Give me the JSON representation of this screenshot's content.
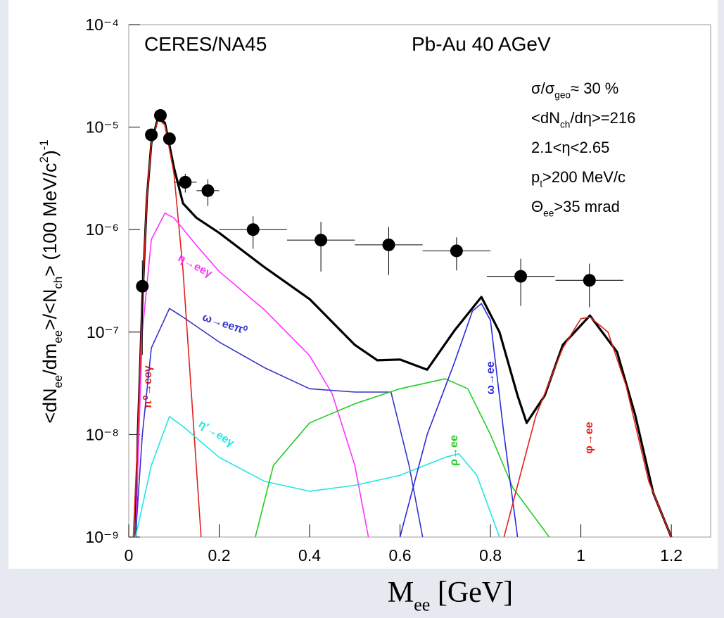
{
  "chart_data": {
    "type": "line",
    "title": "CERES/NA45",
    "subtitle": "Pb-Au 40 AGeV",
    "annotations": [
      [
        {
          "text": "σ/σ"
        },
        {
          "text": "geo",
          "sub": true
        },
        {
          "text": "≈ 30 %"
        }
      ],
      [
        {
          "text": "<dN"
        },
        {
          "text": "ch",
          "sub": true
        },
        {
          "text": "/dη>=216"
        }
      ],
      [
        {
          "text": "2.1<η<2.65"
        }
      ],
      [
        {
          "text": "p"
        },
        {
          "text": "t",
          "sub": true
        },
        {
          "text": ">200 MeV/c"
        }
      ],
      [
        {
          "text": "Θ"
        },
        {
          "text": "ee",
          "sub": true
        },
        {
          "text": ">35 mrad"
        }
      ]
    ],
    "ylabel": [
      {
        "text": "<dN"
      },
      {
        "text": "ee",
        "sub": true
      },
      {
        "text": "/dm"
      },
      {
        "text": "ee",
        "sub": true
      },
      {
        "text": ">/<N"
      },
      {
        "text": "ch",
        "sub": true
      },
      {
        "text": "> (100 MeV/c"
      },
      {
        "text": "2",
        "sup": true
      },
      {
        "text": ")"
      },
      {
        "text": "-1",
        "sup": true
      }
    ],
    "xlabel": [
      {
        "text": "M"
      },
      {
        "text": "ee",
        "sub": true
      },
      {
        "text": " [GeV]"
      }
    ],
    "xlim": [
      0,
      1.287
    ],
    "ylim": [
      1e-09,
      0.0001
    ],
    "log_y": true,
    "xticks": [
      0,
      0.2,
      0.4,
      0.6,
      0.8,
      1,
      1.2
    ],
    "yticks": [
      {
        "value": 1e-09,
        "label": "10⁻⁹"
      },
      {
        "value": 1e-08,
        "label": "10⁻⁸"
      },
      {
        "value": 1e-07,
        "label": "10⁻⁷"
      },
      {
        "value": 1e-06,
        "label": "10⁻⁶"
      },
      {
        "value": 1e-05,
        "label": "10⁻⁵"
      },
      {
        "value": 0.0001,
        "label": "10⁻⁴"
      }
    ],
    "series": [
      {
        "type": "errorbar",
        "color": "#000000",
        "x": [
          0.03,
          0.05,
          0.07,
          0.09,
          0.125,
          0.175,
          0.275,
          0.425,
          0.575,
          0.725,
          0.867,
          1.019
        ],
        "values": [
          2.8e-07,
          8.4e-06,
          1.3e-05,
          7.7e-06,
          2.9e-06,
          2.4e-06,
          1e-06,
          7.9e-07,
          7.1e-07,
          6.2e-07,
          3.5e-07,
          3.2e-07
        ],
        "errors": [
          2.2e-07,
          1e-06,
          1.3e-06,
          9e-07,
          6e-07,
          7e-07,
          3.5e-07,
          4e-07,
          3.5e-07,
          2.2e-07,
          1.7e-07,
          1.45e-07
        ],
        "xerr": [
          0.01,
          0.01,
          0.01,
          0.01,
          0.025,
          0.025,
          0.075,
          0.075,
          0.075,
          0.075,
          0.075,
          0.075
        ]
      },
      {
        "type": "line",
        "color": "#000000",
        "x": [
          0.015,
          0.02,
          0.03,
          0.04,
          0.05,
          0.065,
          0.08,
          0.1,
          0.12,
          0.15,
          0.2,
          0.3,
          0.4,
          0.5,
          0.55,
          0.6,
          0.66,
          0.72,
          0.78,
          0.82,
          0.86,
          0.88,
          0.92,
          0.96,
          1.02,
          1.08,
          1.12,
          1.16,
          1.2
        ],
        "values": [
          1e-09,
          1e-08,
          2e-07,
          2e-06,
          7e-06,
          1.25e-05,
          1.1e-05,
          4e-06,
          1.8e-06,
          1.3e-06,
          9.3e-07,
          4.3e-07,
          2.1e-07,
          7.5e-08,
          5.3e-08,
          5.4e-08,
          4.3e-08,
          1.03e-07,
          2.2e-07,
          1e-07,
          2.4e-08,
          1.3e-08,
          2.4e-08,
          7.5e-08,
          1.45e-07,
          6.4e-08,
          1.56e-08,
          2.7e-09,
          1e-09
        ]
      },
      {
        "type": "line",
        "name": "π⁰→eeγ",
        "color": "#e0201b",
        "x": [
          0.01,
          0.02,
          0.03,
          0.04,
          0.05,
          0.065,
          0.08,
          0.1,
          0.12,
          0.14,
          0.16
        ],
        "values": [
          1e-09,
          1e-08,
          2e-07,
          2e-06,
          7e-06,
          1.2e-05,
          1.05e-05,
          3.5e-06,
          4e-07,
          2e-08,
          1e-09
        ]
      },
      {
        "type": "line",
        "name": "η→eeγ",
        "color": "#ff33ff",
        "x": [
          0.015,
          0.03,
          0.05,
          0.08,
          0.1,
          0.15,
          0.2,
          0.3,
          0.4,
          0.45,
          0.5,
          0.53
        ],
        "values": [
          1e-09,
          1e-07,
          8e-07,
          1.45e-06,
          1.3e-06,
          7e-07,
          3.9e-07,
          1.65e-07,
          5.9e-08,
          2.5e-08,
          5e-09,
          1e-09
        ]
      },
      {
        "type": "line",
        "name": "ω→eeπ⁰",
        "color": "#3333cc",
        "x": [
          0.015,
          0.03,
          0.05,
          0.09,
          0.12,
          0.2,
          0.3,
          0.4,
          0.5,
          0.58,
          0.62,
          0.65
        ],
        "values": [
          1e-09,
          1e-08,
          7e-08,
          1.7e-07,
          1.4e-07,
          8e-08,
          4.5e-08,
          2.8e-08,
          2.6e-08,
          2.6e-08,
          5e-09,
          1e-09
        ]
      },
      {
        "type": "line",
        "name": "η'→eeγ",
        "color": "#22e6e6",
        "x": [
          0.015,
          0.05,
          0.09,
          0.12,
          0.2,
          0.3,
          0.4,
          0.5,
          0.6,
          0.7,
          0.73,
          0.77,
          0.82
        ],
        "values": [
          1e-09,
          5e-09,
          1.5e-08,
          1.2e-08,
          6e-09,
          3.5e-09,
          2.8e-09,
          3.2e-09,
          4e-09,
          6e-09,
          6.5e-09,
          4e-09,
          1e-09
        ]
      },
      {
        "type": "line",
        "name": "ρ→ee",
        "color": "#22cc22",
        "x": [
          0.28,
          0.32,
          0.4,
          0.5,
          0.6,
          0.7,
          0.75,
          0.8,
          0.85,
          0.93
        ],
        "values": [
          1e-09,
          5e-09,
          1.3e-08,
          2e-08,
          2.8e-08,
          3.5e-08,
          2.8e-08,
          1e-08,
          3e-09,
          1e-09
        ]
      },
      {
        "type": "line",
        "name": "ω→ee",
        "color": "#2a2add",
        "x": [
          0.6,
          0.66,
          0.72,
          0.76,
          0.78,
          0.8,
          0.83,
          0.86
        ],
        "values": [
          1e-09,
          1e-08,
          5e-08,
          1.6e-07,
          1.9e-07,
          1.3e-07,
          1e-08,
          1e-09
        ]
      },
      {
        "type": "line",
        "name": "φ→ee",
        "color": "#e0201b",
        "x": [
          0.83,
          0.9,
          0.96,
          1.0,
          1.02,
          1.06,
          1.1,
          1.15,
          1.2
        ],
        "values": [
          1e-09,
          1.5e-08,
          7e-08,
          1.35e-07,
          1.4e-07,
          1e-07,
          3e-08,
          3.5e-09,
          1e-09
        ]
      }
    ]
  }
}
